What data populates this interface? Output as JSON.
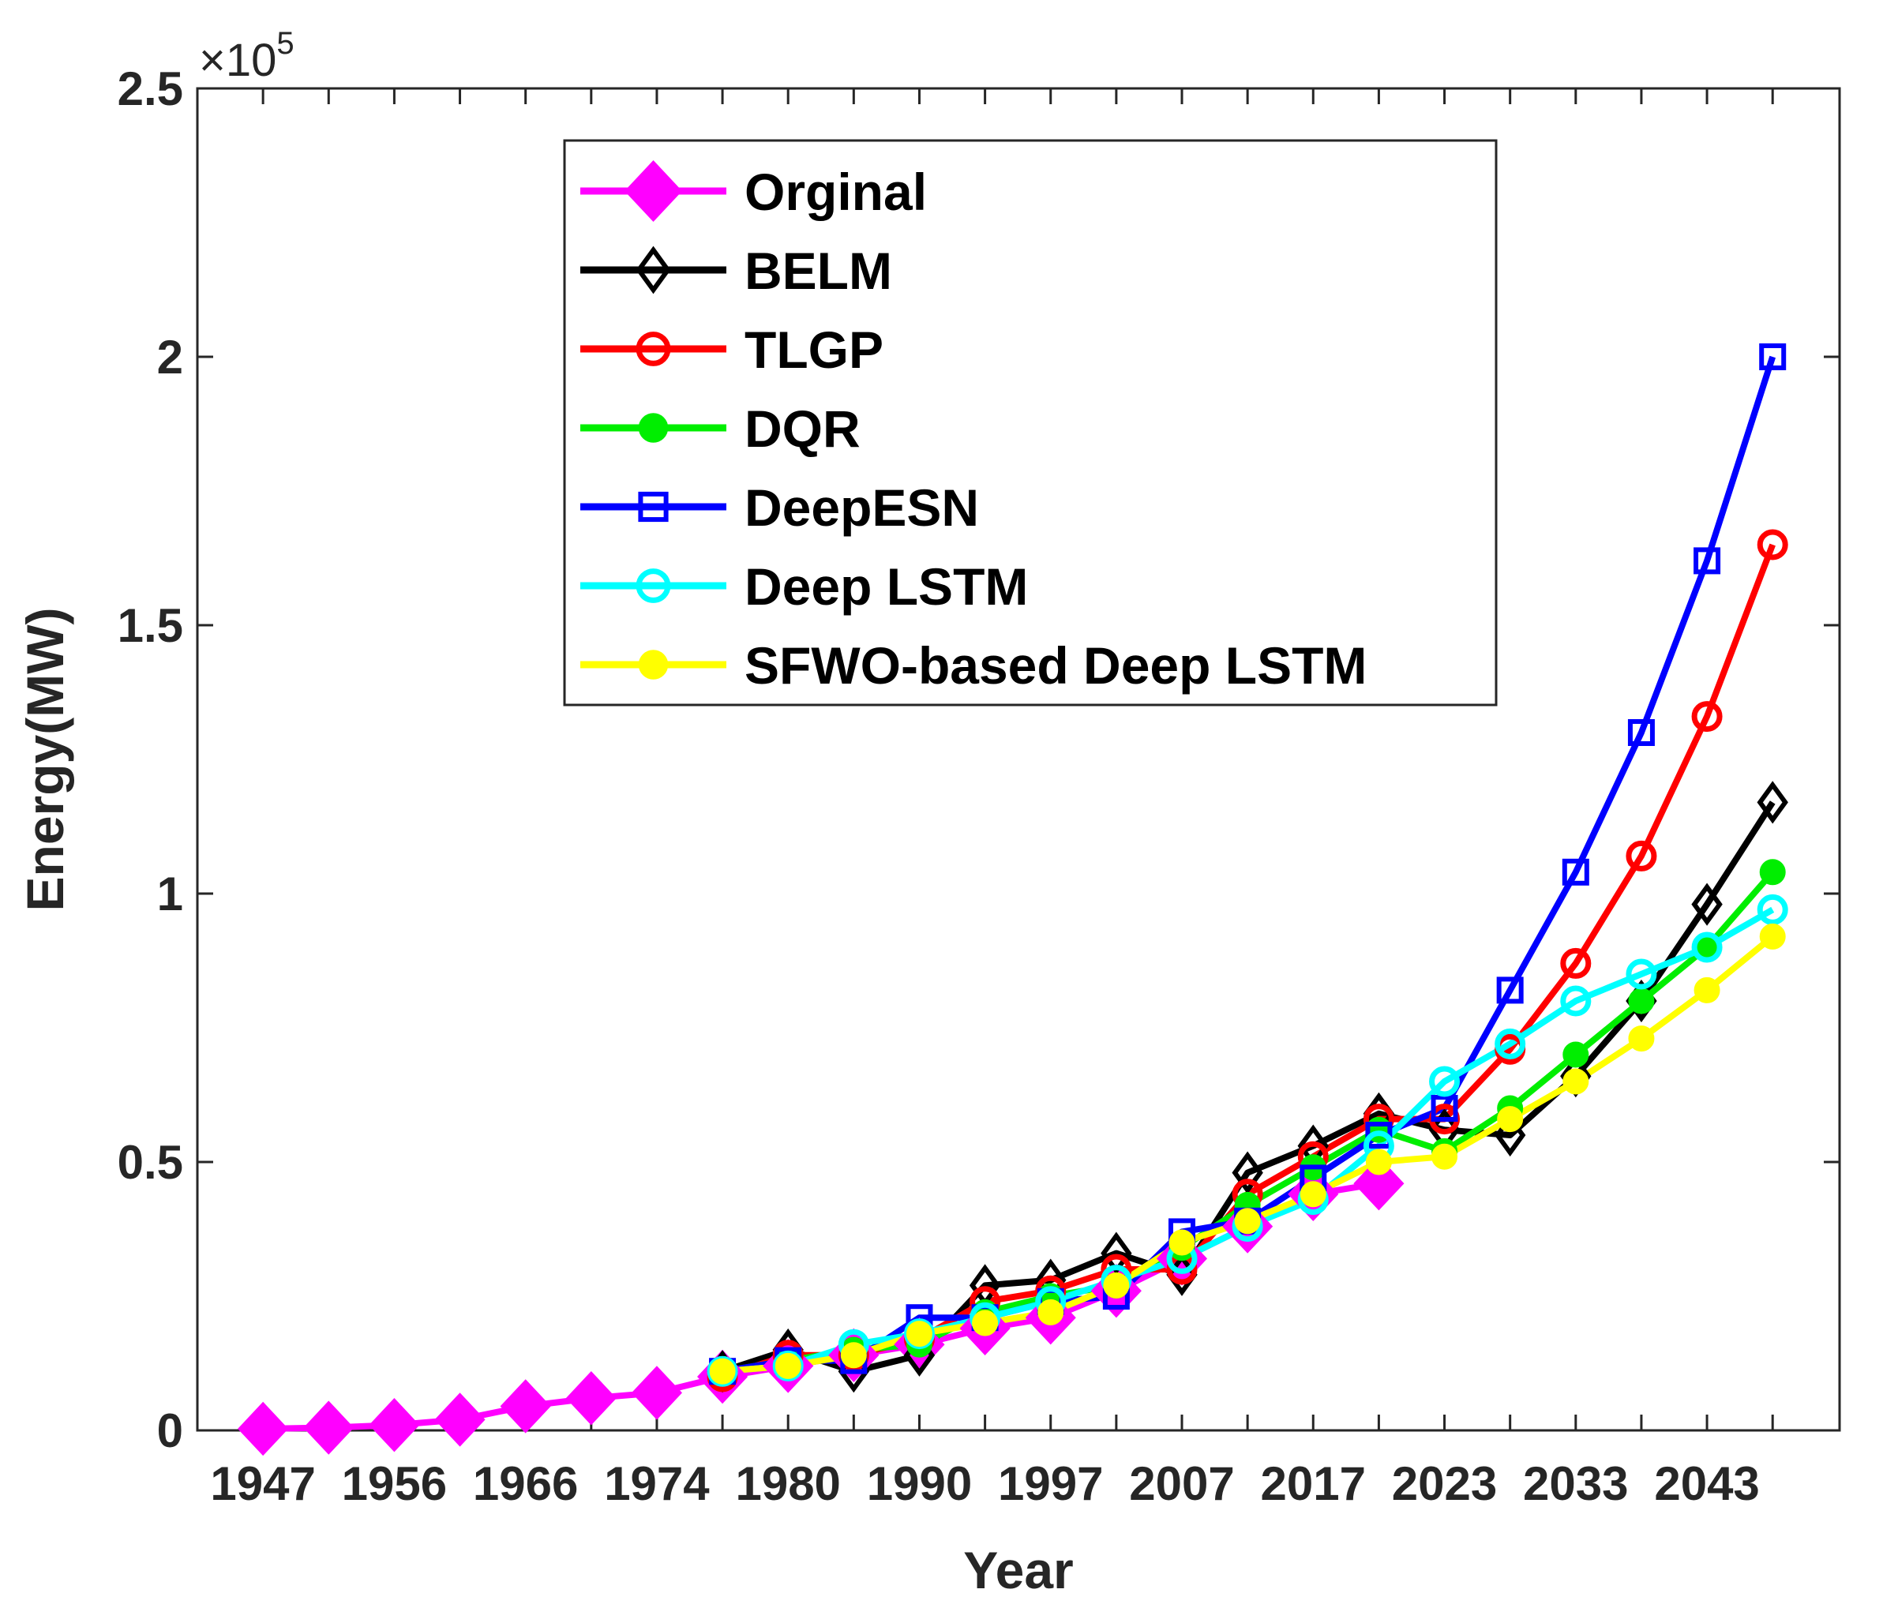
{
  "chart_data": {
    "type": "line",
    "title": "",
    "xlabel": "Year",
    "ylabel": "Energy(MW)",
    "y_exponent_prefix": "×10",
    "y_exponent_power": "5",
    "ylim": [
      0,
      2.5
    ],
    "xlim": [
      0,
      25
    ],
    "yticks": [
      0,
      0.5,
      1,
      1.5,
      2,
      2.5
    ],
    "ytick_labels": [
      "0",
      "0.5",
      "1",
      "1.5",
      "2",
      "2.5"
    ],
    "xtick_positions": [
      1,
      3,
      5,
      7,
      9,
      11,
      13,
      15,
      17,
      19,
      21,
      23
    ],
    "xtick_labels": [
      "1947",
      "1956",
      "1966",
      "1974",
      "1980",
      "1990",
      "1997",
      "2007",
      "2017",
      "2023",
      "2033",
      "2043"
    ],
    "legend_position": "upper-left inside",
    "grid": false,
    "series": [
      {
        "name": "Orginal",
        "color": "#ff00ff",
        "marker": "filled-diamond",
        "x": [
          1,
          2,
          3,
          4,
          5,
          6,
          7,
          8,
          9,
          10,
          11,
          12,
          13,
          14,
          15,
          16,
          17,
          18
        ],
        "y": [
          0.003,
          0.005,
          0.01,
          0.02,
          0.045,
          0.06,
          0.07,
          0.1,
          0.12,
          0.14,
          0.16,
          0.19,
          0.21,
          0.26,
          0.32,
          0.38,
          0.44,
          0.46
        ]
      },
      {
        "name": "BELM",
        "color": "#000000",
        "marker": "open-diamond",
        "x": [
          8,
          9,
          10,
          11,
          12,
          13,
          14,
          15,
          16,
          17,
          18,
          19,
          20,
          21,
          22,
          23,
          24
        ],
        "y": [
          0.11,
          0.15,
          0.11,
          0.14,
          0.27,
          0.28,
          0.33,
          0.29,
          0.48,
          0.53,
          0.59,
          0.56,
          0.55,
          0.66,
          0.8,
          0.98,
          1.17
        ]
      },
      {
        "name": "TLGP",
        "color": "#ff0000",
        "marker": "open-circle",
        "x": [
          8,
          9,
          10,
          11,
          12,
          13,
          14,
          15,
          16,
          17,
          18,
          19,
          20,
          21,
          22,
          23,
          24
        ],
        "y": [
          0.1,
          0.14,
          0.14,
          0.17,
          0.24,
          0.26,
          0.3,
          0.3,
          0.44,
          0.51,
          0.58,
          0.58,
          0.71,
          0.87,
          1.07,
          1.33,
          1.65
        ]
      },
      {
        "name": "DQR",
        "color": "#00ee00",
        "marker": "filled-circle",
        "x": [
          8,
          9,
          10,
          11,
          12,
          13,
          14,
          15,
          16,
          17,
          18,
          19,
          20,
          21,
          22,
          23,
          24
        ],
        "y": [
          0.11,
          0.13,
          0.15,
          0.16,
          0.22,
          0.25,
          0.27,
          0.34,
          0.42,
          0.49,
          0.56,
          0.52,
          0.6,
          0.7,
          0.8,
          0.9,
          1.04
        ]
      },
      {
        "name": "DeepESN",
        "color": "#0000ff",
        "marker": "open-square",
        "x": [
          8,
          9,
          10,
          11,
          12,
          13,
          14,
          15,
          16,
          17,
          18,
          19,
          20,
          21,
          22,
          23,
          24
        ],
        "y": [
          0.11,
          0.13,
          0.13,
          0.21,
          0.21,
          0.24,
          0.25,
          0.37,
          0.39,
          0.47,
          0.55,
          0.6,
          0.82,
          1.04,
          1.3,
          1.62,
          2.0
        ]
      },
      {
        "name": "Deep LSTM",
        "color": "#00ffff",
        "marker": "open-circle",
        "x": [
          8,
          9,
          10,
          11,
          12,
          13,
          14,
          15,
          16,
          17,
          18,
          19,
          20,
          21,
          22,
          23,
          24
        ],
        "y": [
          0.11,
          0.12,
          0.16,
          0.18,
          0.21,
          0.24,
          0.28,
          0.32,
          0.38,
          0.43,
          0.53,
          0.65,
          0.72,
          0.8,
          0.85,
          0.9,
          0.97
        ]
      },
      {
        "name": "SFWO-based Deep LSTM",
        "color": "#ffff00",
        "marker": "filled-circle",
        "x": [
          8,
          9,
          10,
          11,
          12,
          13,
          14,
          15,
          16,
          17,
          18,
          19,
          20,
          21,
          22,
          23,
          24
        ],
        "y": [
          0.11,
          0.12,
          0.14,
          0.18,
          0.2,
          0.22,
          0.27,
          0.35,
          0.39,
          0.44,
          0.5,
          0.51,
          0.58,
          0.65,
          0.73,
          0.82,
          0.92
        ]
      }
    ]
  }
}
